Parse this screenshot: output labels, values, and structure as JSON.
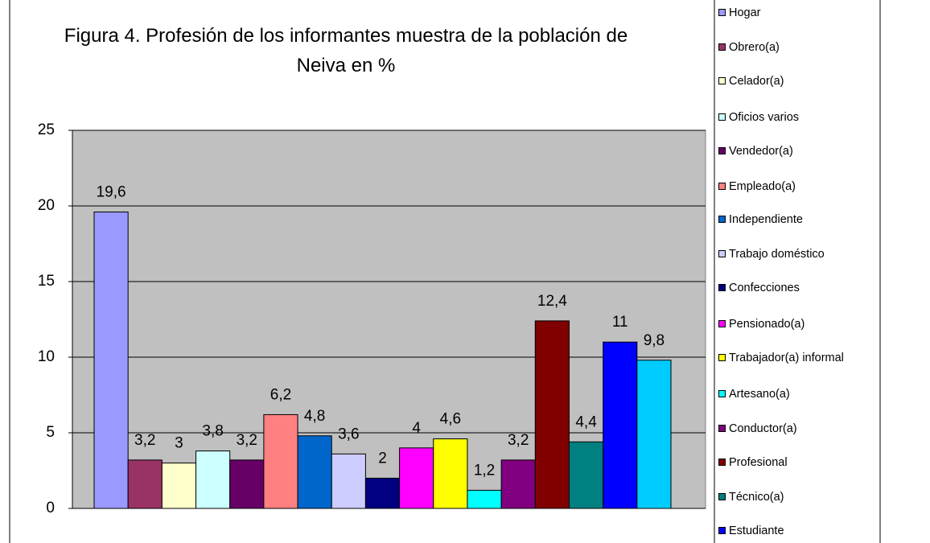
{
  "chart_data": {
    "type": "bar",
    "title": "Figura 4. Profesión de los informantes muestra de la población de Neiva en %",
    "categories": [
      "Hogar",
      "Obrero(a)",
      "Celador(a)",
      "Oficios varios",
      "Vendedor(a)",
      "Empleado(a)",
      "Independiente",
      "Trabajo doméstico",
      "Confecciones",
      "Pensionado(a)",
      "Trabajador(a) informal",
      "Artesano(a)",
      "Conductor(a)",
      "Profesional",
      "Técnico(a)",
      "Estudiante",
      null
    ],
    "values": [
      19.6,
      3.2,
      3,
      3.8,
      3.2,
      6.2,
      4.8,
      3.6,
      2,
      4,
      4.6,
      1.2,
      3.2,
      12.4,
      4.4,
      11,
      9.8
    ],
    "value_labels": [
      "19,6",
      "3,2",
      "3",
      "3,8",
      "3,2",
      "6,2",
      "4,8",
      "3,6",
      "2",
      "4",
      "4,6",
      "1,2",
      "3,2",
      "12,4",
      "4,4",
      "11",
      "9,8"
    ],
    "colors": [
      "#9999ff",
      "#993366",
      "#ffffcc",
      "#ccffff",
      "#660066",
      "#ff8080",
      "#0066cc",
      "#ccccff",
      "#000080",
      "#ff00ff",
      "#ffff00",
      "#00ffff",
      "#800080",
      "#800000",
      "#008080",
      "#0000ff",
      "#00ccff"
    ],
    "ylim": [
      0,
      25
    ],
    "yticks": [
      0,
      5,
      10,
      15,
      20,
      25
    ],
    "grid": true,
    "plot_background": "#c0c0c0"
  }
}
